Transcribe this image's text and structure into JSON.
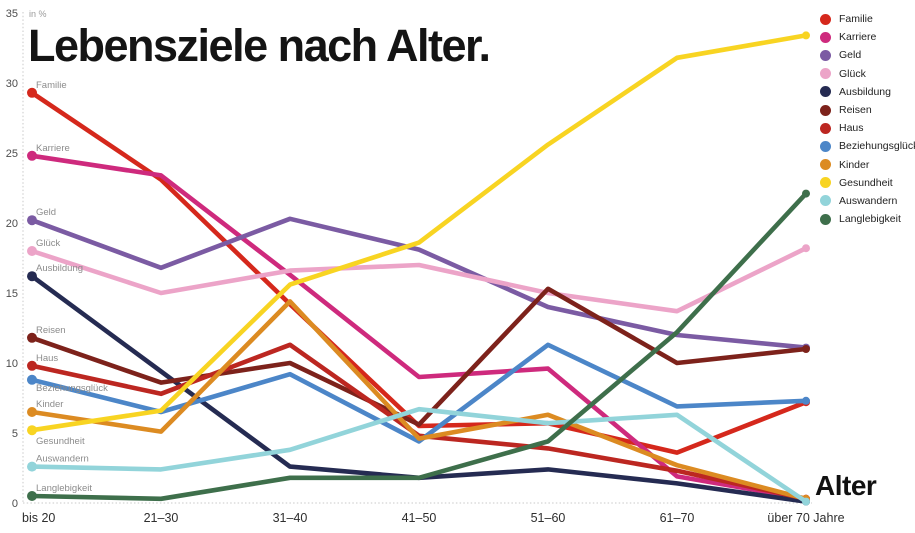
{
  "title": "Lebensziele nach Alter.",
  "x_axis_title": "Alter",
  "y_axis_unit": "in %",
  "chart_data": {
    "type": "line",
    "categories": [
      "bis 20",
      "21–30",
      "31–40",
      "41–50",
      "51–60",
      "61–70",
      "über 70 Jahre"
    ],
    "y_ticks": [
      0,
      5,
      10,
      15,
      20,
      25,
      30,
      35
    ],
    "ylim": [
      0,
      35
    ],
    "grid": false,
    "legend_position": "top-right",
    "series": [
      {
        "name": "Familie",
        "color": "#d5281c",
        "label_dy": -5,
        "values": [
          29.3,
          23.1,
          14.2,
          5.5,
          5.7,
          3.6,
          7.2
        ]
      },
      {
        "name": "Karriere",
        "color": "#ce2a7d",
        "label_dy": -5,
        "values": [
          24.8,
          23.4,
          16.3,
          9.0,
          9.6,
          1.9,
          0.3
        ]
      },
      {
        "name": "Geld",
        "color": "#7b5ba3",
        "label_dy": -5,
        "values": [
          20.2,
          16.8,
          20.3,
          18.1,
          14.0,
          12.0,
          11.1
        ]
      },
      {
        "name": "Glück",
        "color": "#eca4c8",
        "label_dy": -5,
        "values": [
          18.0,
          15.0,
          16.6,
          17.0,
          15.0,
          13.7,
          18.2
        ]
      },
      {
        "name": "Ausbildung",
        "color": "#252b52",
        "label_dy": -5,
        "values": [
          16.2,
          9.4,
          2.6,
          1.8,
          2.4,
          1.4,
          0.1
        ]
      },
      {
        "name": "Reisen",
        "color": "#7d221b",
        "label_dy": -5,
        "values": [
          11.8,
          8.6,
          10.0,
          5.6,
          15.3,
          10.0,
          11.0
        ]
      },
      {
        "name": "Haus",
        "color": "#bc2721",
        "label_dy": -5,
        "values": [
          9.8,
          7.8,
          11.3,
          4.8,
          3.9,
          2.3,
          0.3
        ]
      },
      {
        "name": "Beziehungsglück",
        "color": "#4c86c8",
        "label_dy": 11,
        "values": [
          8.8,
          6.5,
          9.2,
          4.4,
          11.3,
          6.9,
          7.3
        ]
      },
      {
        "name": "Kinder",
        "color": "#dc8b22",
        "label_dy": -5,
        "values": [
          6.5,
          5.1,
          14.4,
          4.6,
          6.3,
          2.7,
          0.3
        ]
      },
      {
        "name": "Gesundheit",
        "color": "#f8d422",
        "label_dy": 14,
        "values": [
          5.2,
          6.6,
          15.6,
          18.6,
          25.6,
          31.8,
          33.4
        ]
      },
      {
        "name": "Auswandern",
        "color": "#92d4da",
        "label_dy": -5,
        "values": [
          2.6,
          2.4,
          3.8,
          6.7,
          5.7,
          6.3,
          0.1
        ]
      },
      {
        "name": "Langlebigkeit",
        "color": "#3e6f4b",
        "label_dy": -5,
        "values": [
          0.5,
          0.3,
          1.8,
          1.8,
          4.4,
          12.2,
          22.1
        ]
      }
    ]
  }
}
